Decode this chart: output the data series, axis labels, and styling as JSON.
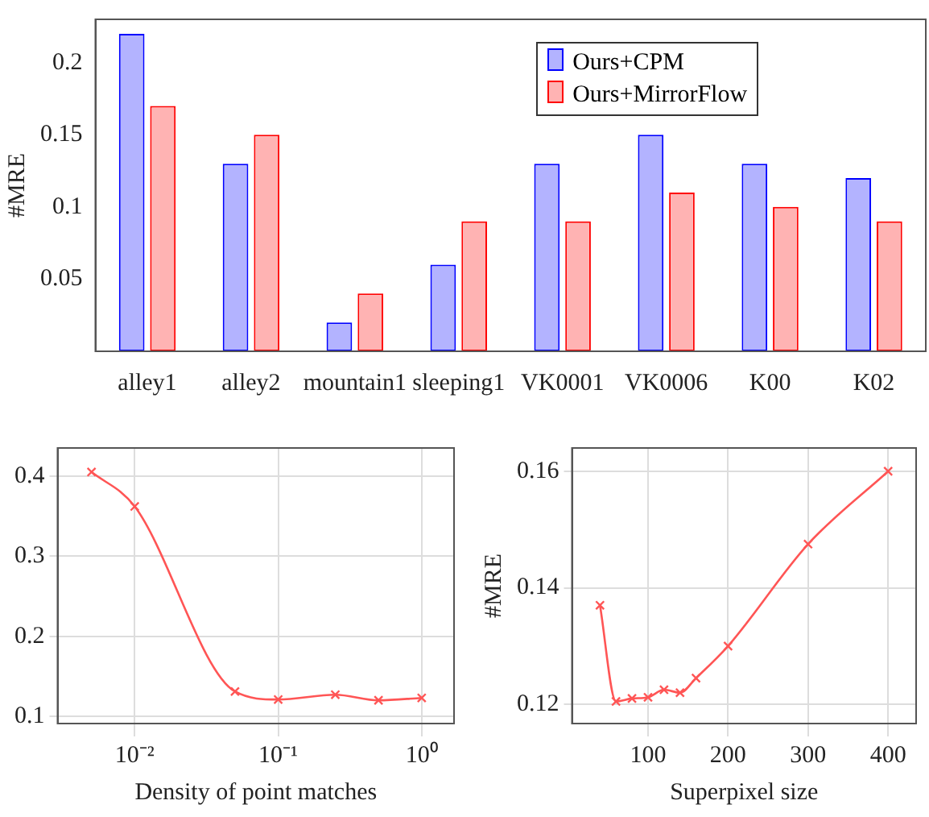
{
  "chart_data": [
    {
      "type": "bar",
      "ylabel": "#MRE",
      "categories": [
        "alley1",
        "alley2",
        "mountain1",
        "sleeping1",
        "VK0001",
        "VK0006",
        "K00",
        "K02"
      ],
      "series": [
        {
          "name": "Ours+CPM",
          "color": "#b3b3ff",
          "values": [
            0.22,
            0.13,
            0.02,
            0.06,
            0.13,
            0.15,
            0.13,
            0.12
          ]
        },
        {
          "name": "Ours+MirrorFlow",
          "color": "#ffb3b3",
          "values": [
            0.17,
            0.15,
            0.04,
            0.09,
            0.09,
            0.11,
            0.1,
            0.09
          ]
        }
      ],
      "ylim": [
        0,
        0.23
      ],
      "yticks": [
        0.05,
        0.1,
        0.15,
        0.2
      ],
      "grid": false,
      "legend": "top right"
    },
    {
      "type": "line",
      "xlabel": "Density of point matches",
      "log": "x",
      "x": [
        0.005,
        0.01,
        0.05,
        0.1,
        0.25,
        0.5,
        1
      ],
      "series": [
        {
          "color": "#ff5555",
          "values": [
            0.405,
            0.362,
            0.131,
            0.121,
            0.127,
            0.12,
            0.123
          ]
        }
      ],
      "xlim": [
        0.0029,
        1.68
      ],
      "xticks": [
        {
          "value": 0.01,
          "label": "10⁻²"
        },
        {
          "value": 0.1,
          "label": "10⁻¹"
        },
        {
          "value": 1,
          "label": "10⁰"
        }
      ],
      "ylim": [
        0.091,
        0.435
      ],
      "yticks": [
        0.1,
        0.2,
        0.3,
        0.4
      ],
      "grid": true,
      "marker": "cross"
    },
    {
      "type": "line",
      "xlabel": "Superpixel size",
      "ylabel": "#MRE",
      "x": [
        40,
        60,
        80,
        100,
        120,
        140,
        160,
        200,
        300,
        400
      ],
      "series": [
        {
          "color": "#ff5555",
          "values": [
            0.137,
            0.1205,
            0.121,
            0.1212,
            0.1225,
            0.122,
            0.1245,
            0.13,
            0.1475,
            0.16
          ]
        }
      ],
      "xlim": [
        5,
        435
      ],
      "xticks": [
        100,
        200,
        300,
        400
      ],
      "ylim": [
        0.1167,
        0.164
      ],
      "yticks": [
        0.12,
        0.14,
        0.16
      ],
      "grid": true,
      "marker": "cross"
    }
  ]
}
